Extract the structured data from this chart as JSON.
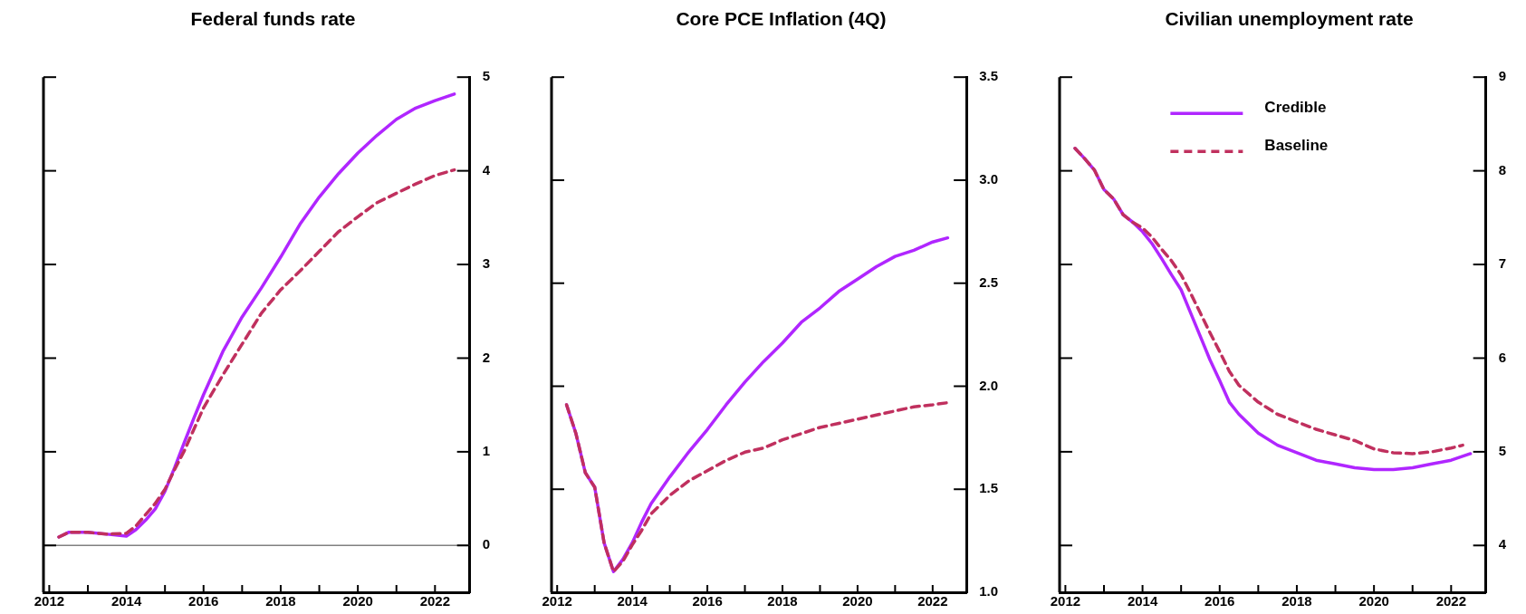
{
  "chart_data": [
    {
      "type": "line",
      "title": "Federal funds rate",
      "xlim": [
        2011.85,
        2022.9
      ],
      "xticks": [
        2012,
        {
          "value": 2013,
          "label": null
        },
        2014,
        {
          "value": 2015,
          "label": null
        },
        2016,
        {
          "value": 2017,
          "label": null
        },
        2018,
        {
          "value": 2019,
          "label": null
        },
        2020,
        {
          "value": 2021,
          "label": null
        },
        2022
      ],
      "ylim": [
        -0.5,
        5
      ],
      "yticks": [
        0,
        1,
        2,
        3,
        4,
        5
      ],
      "ref_lines": [
        {
          "axis": "y",
          "value": 0,
          "color": "#808080"
        }
      ],
      "series": [
        {
          "color": "#b026ff",
          "line_style": "solid",
          "x": [
            2012.25,
            2012.5,
            2013,
            2013.5,
            2014,
            2014.25,
            2014.5,
            2014.75,
            2015,
            2015.25,
            2015.5,
            2015.75,
            2016,
            2016.5,
            2017,
            2017.5,
            2018,
            2018.5,
            2019,
            2019.5,
            2020,
            2020.5,
            2021,
            2021.5,
            2022,
            2022.5
          ],
          "values": [
            0.09,
            0.14,
            0.14,
            0.12,
            0.1,
            0.17,
            0.27,
            0.39,
            0.58,
            0.83,
            1.1,
            1.36,
            1.61,
            2.07,
            2.44,
            2.75,
            3.08,
            3.43,
            3.72,
            3.97,
            4.19,
            4.38,
            4.55,
            4.67,
            4.75,
            4.82
          ]
        },
        {
          "color": "#c0305e",
          "line_style": "dashed",
          "x": [
            2012.25,
            2012.5,
            2013,
            2013.5,
            2014,
            2014.25,
            2014.5,
            2014.75,
            2015,
            2015.25,
            2015.5,
            2015.75,
            2016,
            2016.5,
            2017,
            2017.5,
            2018,
            2018.5,
            2019,
            2019.5,
            2020,
            2020.5,
            2021,
            2021.5,
            2022,
            2022.5
          ],
          "values": [
            0.09,
            0.14,
            0.14,
            0.12,
            0.13,
            0.21,
            0.33,
            0.45,
            0.6,
            0.81,
            1.01,
            1.24,
            1.47,
            1.82,
            2.15,
            2.48,
            2.73,
            2.93,
            3.14,
            3.35,
            3.51,
            3.66,
            3.76,
            3.86,
            3.95,
            4.01
          ]
        }
      ]
    },
    {
      "type": "line",
      "title": "Core PCE Inflation (4Q)",
      "xlim": [
        2011.85,
        2022.9
      ],
      "xticks": [
        2012,
        {
          "value": 2013,
          "label": null
        },
        2014,
        {
          "value": 2015,
          "label": null
        },
        2016,
        {
          "value": 2017,
          "label": null
        },
        2018,
        {
          "value": 2019,
          "label": null
        },
        2020,
        {
          "value": 2021,
          "label": null
        },
        2022
      ],
      "ylim": [
        1,
        3.5
      ],
      "yticks": [
        {
          "value": 1,
          "label": "1.0"
        },
        {
          "value": 1.5,
          "label": "1.5"
        },
        {
          "value": 2,
          "label": "2.0"
        },
        {
          "value": 2.5,
          "label": "2.5"
        },
        {
          "value": 3,
          "label": "3.0"
        },
        {
          "value": 3.5,
          "label": "3.5"
        }
      ],
      "series": [
        {
          "color": "#b026ff",
          "line_style": "solid",
          "x": [
            2012.25,
            2012.5,
            2012.75,
            2013,
            2013.25,
            2013.5,
            2013.75,
            2014,
            2014.25,
            2014.5,
            2015,
            2015.5,
            2016,
            2016.5,
            2017,
            2017.5,
            2018,
            2018.5,
            2019,
            2019.5,
            2020,
            2020.5,
            2021,
            2021.5,
            2022,
            2022.4
          ],
          "values": [
            1.91,
            1.77,
            1.58,
            1.51,
            1.24,
            1.1,
            1.16,
            1.24,
            1.34,
            1.43,
            1.56,
            1.68,
            1.79,
            1.91,
            2.02,
            2.12,
            2.21,
            2.31,
            2.38,
            2.46,
            2.52,
            2.58,
            2.63,
            2.66,
            2.7,
            2.72
          ]
        },
        {
          "color": "#c0305e",
          "line_style": "dashed",
          "x": [
            2012.25,
            2012.5,
            2012.75,
            2013,
            2013.25,
            2013.5,
            2013.75,
            2014,
            2014.25,
            2014.5,
            2015,
            2015.5,
            2016,
            2016.5,
            2017,
            2017.5,
            2018,
            2018.5,
            2019,
            2019.5,
            2020,
            2020.5,
            2021,
            2021.5,
            2022,
            2022.4
          ],
          "values": [
            1.91,
            1.77,
            1.58,
            1.51,
            1.24,
            1.1,
            1.15,
            1.23,
            1.3,
            1.38,
            1.47,
            1.54,
            1.59,
            1.64,
            1.68,
            1.7,
            1.74,
            1.77,
            1.8,
            1.82,
            1.84,
            1.86,
            1.88,
            1.9,
            1.91,
            1.92
          ]
        }
      ]
    },
    {
      "type": "line",
      "title": "Civilian unemployment rate",
      "legend": "top",
      "xlim": [
        2011.85,
        2022.9
      ],
      "xticks": [
        2012,
        {
          "value": 2013,
          "label": null
        },
        2014,
        {
          "value": 2015,
          "label": null
        },
        2016,
        {
          "value": 2017,
          "label": null
        },
        2018,
        {
          "value": 2019,
          "label": null
        },
        2020,
        {
          "value": 2021,
          "label": null
        },
        2022
      ],
      "ylim": [
        3.5,
        9
      ],
      "yticks": [
        4,
        5,
        6,
        7,
        8,
        9
      ],
      "series": [
        {
          "name": "Credible",
          "color": "#b026ff",
          "line_style": "solid",
          "x": [
            2012.25,
            2012.5,
            2012.75,
            2013,
            2013.25,
            2013.5,
            2013.75,
            2014,
            2014.25,
            2014.5,
            2014.75,
            2015,
            2015.25,
            2015.5,
            2015.75,
            2016,
            2016.25,
            2016.5,
            2017,
            2017.5,
            2018,
            2018.5,
            2019,
            2019.5,
            2020,
            2020.5,
            2021,
            2021.5,
            2022,
            2022.5
          ],
          "values": [
            8.24,
            8.13,
            8.01,
            7.8,
            7.7,
            7.53,
            7.45,
            7.35,
            7.22,
            7.06,
            6.89,
            6.73,
            6.48,
            6.23,
            5.98,
            5.76,
            5.53,
            5.4,
            5.2,
            5.07,
            4.99,
            4.91,
            4.87,
            4.83,
            4.81,
            4.81,
            4.83,
            4.87,
            4.91,
            4.98
          ]
        },
        {
          "name": "Baseline",
          "color": "#c0305e",
          "line_style": "dashed",
          "x": [
            2012.25,
            2012.5,
            2012.75,
            2013,
            2013.25,
            2013.5,
            2013.75,
            2014,
            2014.25,
            2014.5,
            2014.75,
            2015,
            2015.25,
            2015.5,
            2015.75,
            2016,
            2016.25,
            2016.5,
            2017,
            2017.5,
            2018,
            2018.5,
            2019,
            2019.5,
            2020,
            2020.5,
            2021,
            2021.5,
            2022,
            2022.3
          ],
          "values": [
            8.24,
            8.13,
            8.01,
            7.8,
            7.7,
            7.53,
            7.45,
            7.39,
            7.29,
            7.16,
            7.04,
            6.89,
            6.69,
            6.48,
            6.27,
            6.07,
            5.86,
            5.71,
            5.53,
            5.4,
            5.32,
            5.24,
            5.18,
            5.12,
            5.03,
            4.99,
            4.98,
            5.0,
            5.04,
            5.07
          ]
        }
      ]
    }
  ]
}
